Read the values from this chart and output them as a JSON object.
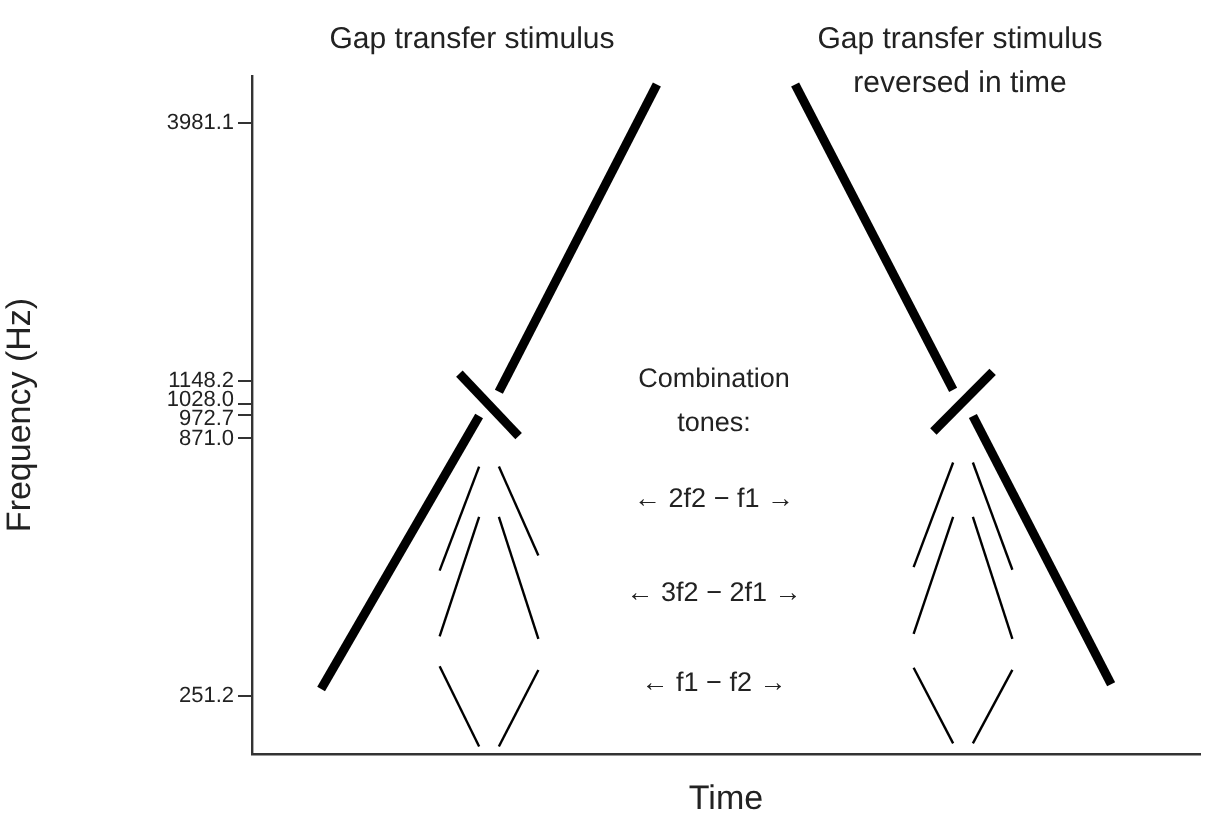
{
  "chart_data": {
    "type": "line",
    "xlabel": "Time",
    "ylabel": "Frequency (Hz)",
    "log": "y",
    "tick_labels": "y",
    "legend": false,
    "categories": [
      null,
      null,
      null,
      null,
      null,
      null,
      null,
      null,
      null,
      null,
      null,
      null,
      null,
      null,
      null,
      null,
      null,
      null,
      null,
      null,
      null,
      null,
      null,
      null,
      null,
      null,
      null,
      null,
      null,
      null,
      null,
      null,
      null,
      null,
      null,
      null,
      null,
      null,
      null,
      null,
      null,
      null,
      null,
      null,
      null,
      null,
      null,
      null
    ],
    "ylim": [
      190,
      5000
    ],
    "yticks": [
      251.2,
      {
        "value": 871,
        "label": "871.0"
      },
      972.7,
      {
        "value": 1028,
        "label": "1028.0"
      },
      1148.2,
      3981.1
    ],
    "annotations": [
      "Gap transfer stimulus",
      "Gap transfer stimulus\nreversed in time",
      "Combination\ntones:",
      "← 2f2 − f1 →",
      "← 3f2 − 2f1 →",
      "← f1 − f2 →"
    ],
    "series": [
      {
        "color": "#000000",
        "values": [
          null,
          null,
          null,
          260,
          null,
          null,
          null,
          null,
          null,
          null,
          null,
          970,
          null,
          null,
          null,
          null,
          null,
          null,
          null,
          null,
          null,
          null,
          null,
          null,
          null,
          null,
          null,
          null,
          null,
          null,
          null,
          null,
          null,
          null,
          null,
          null,
          null,
          null,
          null,
          null,
          null,
          null,
          null,
          null,
          null,
          null,
          null,
          null
        ]
      },
      {
        "color": "#000000",
        "values": [
          null,
          null,
          null,
          null,
          null,
          null,
          null,
          null,
          null,
          null,
          null,
          null,
          1090,
          null,
          null,
          null,
          null,
          null,
          null,
          null,
          4800,
          null,
          null,
          null,
          null,
          null,
          null,
          null,
          null,
          null,
          null,
          null,
          null,
          null,
          null,
          null,
          null,
          null,
          null,
          null,
          null,
          null,
          null,
          null,
          null,
          null,
          null,
          null
        ]
      },
      {
        "color": "#000000",
        "values": [
          null,
          null,
          null,
          null,
          null,
          null,
          null,
          null,
          null,
          null,
          1190,
          null,
          null,
          880,
          null,
          null,
          null,
          null,
          null,
          null,
          null,
          null,
          null,
          null,
          null,
          null,
          null,
          null,
          null,
          null,
          null,
          null,
          null,
          null,
          null,
          null,
          null,
          null,
          null,
          null,
          null,
          null,
          null,
          null,
          null,
          null,
          null,
          null
        ]
      },
      {
        "color": "#000000",
        "values": [
          null,
          null,
          null,
          null,
          null,
          null,
          null,
          null,
          null,
          null,
          null,
          null,
          null,
          null,
          null,
          null,
          null,
          null,
          null,
          null,
          null,
          null,
          null,
          null,
          null,
          null,
          null,
          4800,
          null,
          null,
          null,
          null,
          null,
          null,
          null,
          1100,
          null,
          null,
          null,
          null,
          null,
          null,
          null,
          null,
          null,
          null,
          null,
          null
        ]
      },
      {
        "color": "#000000",
        "values": [
          null,
          null,
          null,
          null,
          null,
          null,
          null,
          null,
          null,
          null,
          null,
          null,
          null,
          null,
          null,
          null,
          null,
          null,
          null,
          null,
          null,
          null,
          null,
          null,
          null,
          null,
          null,
          null,
          null,
          null,
          null,
          null,
          null,
          null,
          900,
          null,
          null,
          1200,
          null,
          null,
          null,
          null,
          null,
          null,
          null,
          null,
          null,
          null
        ]
      },
      {
        "color": "#000000",
        "values": [
          null,
          null,
          null,
          null,
          null,
          null,
          null,
          null,
          null,
          null,
          null,
          null,
          null,
          null,
          null,
          null,
          null,
          null,
          null,
          null,
          null,
          null,
          null,
          null,
          null,
          null,
          null,
          null,
          null,
          null,
          null,
          null,
          null,
          null,
          null,
          null,
          970,
          null,
          null,
          null,
          null,
          null,
          null,
          266,
          null,
          null,
          null,
          null
        ]
      },
      {
        "color": "#000000",
        "values": [
          null,
          null,
          null,
          null,
          null,
          null,
          null,
          null,
          null,
          460,
          null,
          760,
          null,
          null,
          null,
          null,
          null,
          null,
          null,
          null,
          null,
          null,
          null,
          null,
          null,
          null,
          null,
          null,
          null,
          null,
          null,
          null,
          null,
          null,
          null,
          null,
          null,
          null,
          null,
          null,
          null,
          null,
          null,
          null,
          null,
          null,
          null,
          null
        ]
      },
      {
        "color": "#000000",
        "values": [
          null,
          null,
          null,
          null,
          null,
          null,
          null,
          null,
          null,
          null,
          null,
          null,
          760,
          null,
          495,
          null,
          null,
          null,
          null,
          null,
          null,
          null,
          null,
          null,
          null,
          null,
          null,
          null,
          null,
          null,
          null,
          null,
          null,
          null,
          null,
          null,
          null,
          null,
          null,
          null,
          null,
          null,
          null,
          null,
          null,
          null,
          null,
          null
        ]
      },
      {
        "color": "#000000",
        "values": [
          null,
          null,
          null,
          null,
          null,
          null,
          null,
          null,
          null,
          335,
          null,
          596,
          null,
          null,
          null,
          null,
          null,
          null,
          null,
          null,
          null,
          null,
          null,
          null,
          null,
          null,
          null,
          null,
          null,
          null,
          null,
          null,
          null,
          null,
          null,
          null,
          null,
          null,
          null,
          null,
          null,
          null,
          null,
          null,
          null,
          null,
          null,
          null
        ]
      },
      {
        "color": "#000000",
        "values": [
          null,
          null,
          null,
          null,
          null,
          null,
          null,
          null,
          null,
          null,
          null,
          null,
          596,
          null,
          331,
          null,
          null,
          null,
          null,
          null,
          null,
          null,
          null,
          null,
          null,
          null,
          null,
          null,
          null,
          null,
          null,
          null,
          null,
          null,
          null,
          null,
          null,
          null,
          null,
          null,
          null,
          null,
          null,
          null,
          null,
          null,
          null,
          null
        ]
      },
      {
        "color": "#000000",
        "values": [
          null,
          null,
          null,
          null,
          null,
          null,
          null,
          null,
          null,
          290,
          null,
          197,
          null,
          null,
          null,
          null,
          null,
          null,
          null,
          null,
          null,
          null,
          null,
          null,
          null,
          null,
          null,
          null,
          null,
          null,
          null,
          null,
          null,
          null,
          null,
          null,
          null,
          null,
          null,
          null,
          null,
          null,
          null,
          null,
          null,
          null,
          null,
          null
        ]
      },
      {
        "color": "#000000",
        "values": [
          null,
          null,
          null,
          null,
          null,
          null,
          null,
          null,
          null,
          null,
          null,
          null,
          197,
          null,
          285,
          null,
          null,
          null,
          null,
          null,
          null,
          null,
          null,
          null,
          null,
          null,
          null,
          null,
          null,
          null,
          null,
          null,
          null,
          null,
          null,
          null,
          null,
          null,
          null,
          null,
          null,
          null,
          null,
          null,
          null,
          null,
          null,
          null
        ]
      },
      {
        "color": "#000000",
        "values": [
          null,
          null,
          null,
          null,
          null,
          null,
          null,
          null,
          null,
          null,
          null,
          null,
          null,
          null,
          null,
          null,
          null,
          null,
          null,
          null,
          null,
          null,
          null,
          null,
          null,
          null,
          null,
          null,
          null,
          null,
          null,
          null,
          null,
          468,
          null,
          775,
          null,
          null,
          null,
          null,
          null,
          null,
          null,
          null,
          null,
          null,
          null,
          null
        ]
      },
      {
        "color": "#000000",
        "values": [
          null,
          null,
          null,
          null,
          null,
          null,
          null,
          null,
          null,
          null,
          null,
          null,
          null,
          null,
          null,
          null,
          null,
          null,
          null,
          null,
          null,
          null,
          null,
          null,
          null,
          null,
          null,
          null,
          null,
          null,
          null,
          null,
          null,
          null,
          null,
          null,
          775,
          null,
          462,
          null,
          null,
          null,
          null,
          null,
          null,
          null,
          null,
          null
        ]
      },
      {
        "color": "#000000",
        "values": [
          null,
          null,
          null,
          null,
          null,
          null,
          null,
          null,
          null,
          null,
          null,
          null,
          null,
          null,
          null,
          null,
          null,
          null,
          null,
          null,
          null,
          null,
          null,
          null,
          null,
          null,
          null,
          null,
          null,
          null,
          null,
          null,
          null,
          339,
          null,
          596,
          null,
          null,
          null,
          null,
          null,
          null,
          null,
          null,
          null,
          null,
          null,
          null
        ]
      },
      {
        "color": "#000000",
        "values": [
          null,
          null,
          null,
          null,
          null,
          null,
          null,
          null,
          null,
          null,
          null,
          null,
          null,
          null,
          null,
          null,
          null,
          null,
          null,
          null,
          null,
          null,
          null,
          null,
          null,
          null,
          null,
          null,
          null,
          null,
          null,
          null,
          null,
          null,
          null,
          null,
          596,
          null,
          331,
          null,
          null,
          null,
          null,
          null,
          null,
          null,
          null,
          null
        ]
      },
      {
        "color": "#000000",
        "values": [
          null,
          null,
          null,
          null,
          null,
          null,
          null,
          null,
          null,
          null,
          null,
          null,
          null,
          null,
          null,
          null,
          null,
          null,
          null,
          null,
          null,
          null,
          null,
          null,
          null,
          null,
          null,
          null,
          null,
          null,
          null,
          null,
          null,
          288,
          null,
          200,
          null,
          null,
          null,
          null,
          null,
          null,
          null,
          null,
          null,
          null,
          null,
          null
        ]
      },
      {
        "color": "#000000",
        "values": [
          null,
          null,
          null,
          null,
          null,
          null,
          null,
          null,
          null,
          null,
          null,
          null,
          null,
          null,
          null,
          null,
          null,
          null,
          null,
          null,
          null,
          null,
          null,
          null,
          null,
          null,
          null,
          null,
          null,
          null,
          null,
          null,
          null,
          null,
          null,
          null,
          200,
          null,
          285,
          null,
          null,
          null,
          null,
          null,
          null,
          null,
          null,
          null
        ]
      }
    ]
  }
}
